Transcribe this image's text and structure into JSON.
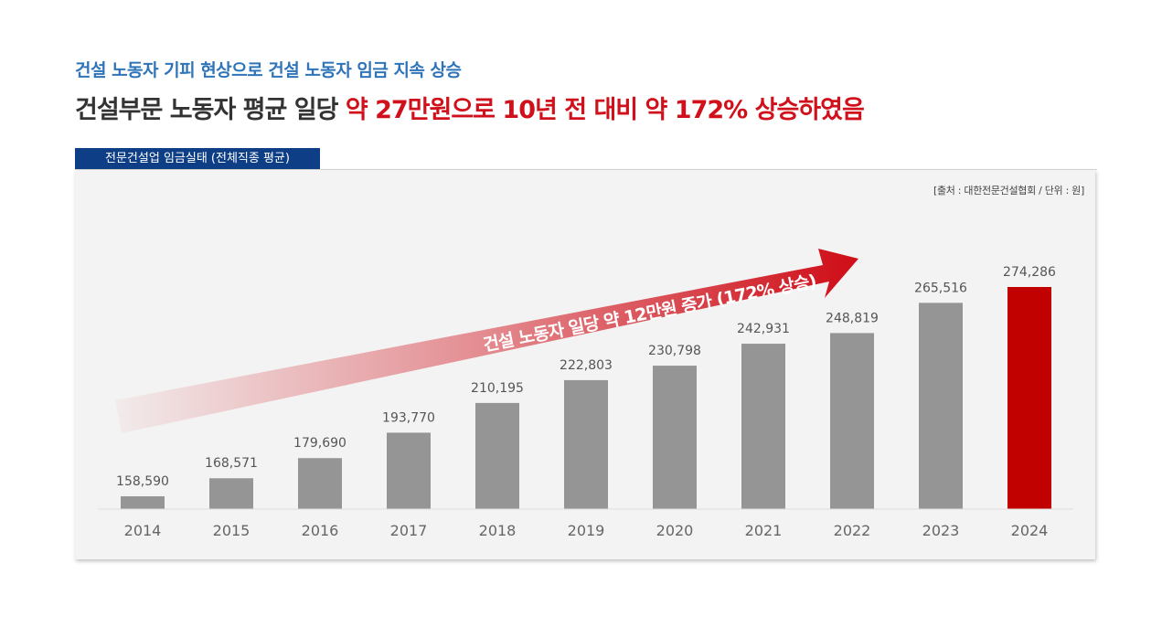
{
  "header": {
    "subtitle": "건설 노동자 기피 현상으로 건설 노동자 임금 지속 상승",
    "headline_prefix": "건설부문 노동자 평균 일당 ",
    "headline_highlight": "약 27만원으로 10년 전 대비 약 172% 상승하였음"
  },
  "tab_label": "전문건설업 임금실태 (전체직종 평균)",
  "source": "[출처 : 대한전문건설협회 / 단위 : 원]",
  "colors": {
    "bar_default": "#959595",
    "bar_highlight": "#c10000",
    "subtitle": "#2f74b8",
    "headline_highlight": "#d0111b",
    "tab_bg": "#0e3f86",
    "arrow": "#d0111b"
  },
  "chart_data": {
    "type": "bar",
    "categories": [
      "2014",
      "2015",
      "2016",
      "2017",
      "2018",
      "2019",
      "2020",
      "2021",
      "2022",
      "2023",
      "2024"
    ],
    "values": [
      158590,
      168571,
      179690,
      193770,
      210195,
      222803,
      230798,
      242931,
      248819,
      265516,
      274286
    ],
    "value_labels": [
      "158,590",
      "168,571",
      "179,690",
      "193,770",
      "210,195",
      "222,803",
      "230,798",
      "242,931",
      "248,819",
      "265,516",
      "274,286"
    ],
    "highlight_index": 10,
    "y_axis_visible": false,
    "grid": false,
    "annotation": "건설 노동자 일당 약 12만원 증가 (172% 상승)"
  }
}
